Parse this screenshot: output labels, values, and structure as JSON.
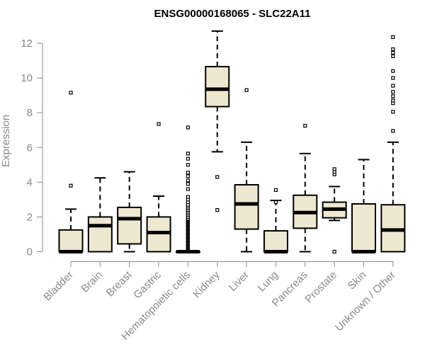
{
  "chart_data": {
    "type": "boxplot",
    "title": "ENSG00000168065 - SLC22A11",
    "xlabel": "",
    "ylabel": "Expression",
    "ylim": [
      0,
      12.5
    ],
    "yticks": [
      0,
      2,
      4,
      6,
      8,
      10,
      12
    ],
    "grid": false,
    "box_fill": "#ede8d0",
    "box_stroke": "#000000",
    "axis_color": "#8a8a8a",
    "categories": [
      "Bladder",
      "Brain",
      "Breast",
      "Gastric",
      "Hematopoietic cells",
      "Kidney",
      "Liver",
      "Lung",
      "Pancreas",
      "Prostate",
      "Skin",
      "Unknown / Other"
    ],
    "boxes": [
      {
        "name": "Bladder",
        "whisker_low": 0,
        "q1": 0,
        "median": 0,
        "q3": 1.25,
        "whisker_high": 2.45,
        "outliers": [
          3.8,
          9.15
        ]
      },
      {
        "name": "Brain",
        "whisker_low": 0,
        "q1": 0,
        "median": 1.5,
        "q3": 2.0,
        "whisker_high": 4.25,
        "outliers": []
      },
      {
        "name": "Breast",
        "whisker_low": 0,
        "q1": 0.45,
        "median": 1.9,
        "q3": 2.55,
        "whisker_high": 4.6,
        "outliers": []
      },
      {
        "name": "Gastric",
        "whisker_low": 0,
        "q1": 0,
        "median": 1.1,
        "q3": 2.0,
        "whisker_high": 3.2,
        "outliers": [
          7.35
        ]
      },
      {
        "name": "Hematopoietic cells",
        "whisker_low": 0,
        "q1": 0,
        "median": 0,
        "q3": 0,
        "whisker_high": 0,
        "outliers": [
          0.05,
          0.1,
          0.15,
          0.2,
          0.25,
          0.3,
          0.35,
          0.4,
          0.45,
          0.5,
          0.55,
          0.6,
          0.65,
          0.7,
          0.75,
          0.8,
          0.85,
          0.9,
          0.95,
          1.0,
          1.05,
          1.1,
          1.15,
          1.2,
          1.25,
          1.3,
          1.35,
          1.4,
          1.45,
          1.5,
          1.55,
          1.6,
          1.65,
          1.7,
          1.75,
          1.8,
          1.85,
          1.9,
          2.0,
          2.1,
          2.2,
          2.3,
          2.4,
          2.5,
          2.6,
          2.7,
          2.85,
          3.0,
          3.15,
          3.6,
          3.9,
          4.1,
          4.35,
          4.55,
          5.0,
          5.35,
          5.65,
          7.15
        ]
      },
      {
        "name": "Kidney",
        "whisker_low": 5.75,
        "q1": 8.35,
        "median": 9.35,
        "q3": 10.65,
        "whisker_high": 12.7,
        "outliers": [
          4.3,
          2.4
        ]
      },
      {
        "name": "Liver",
        "whisker_low": 0,
        "q1": 1.3,
        "median": 2.75,
        "q3": 3.85,
        "whisker_high": 6.3,
        "outliers": [
          9.3
        ]
      },
      {
        "name": "Lung",
        "whisker_low": 0,
        "q1": 0,
        "median": 0,
        "q3": 1.2,
        "whisker_high": 2.95,
        "outliers": [
          2.85,
          3.55
        ]
      },
      {
        "name": "Pancreas",
        "whisker_low": 0,
        "q1": 1.35,
        "median": 2.25,
        "q3": 3.25,
        "whisker_high": 5.65,
        "outliers": [
          7.25
        ]
      },
      {
        "name": "Prostate",
        "whisker_low": 1.8,
        "q1": 1.95,
        "median": 2.45,
        "q3": 2.85,
        "whisker_high": 3.75,
        "outliers": [
          4.45,
          4.6,
          4.75,
          0.0
        ]
      },
      {
        "name": "Skin",
        "whisker_low": 0,
        "q1": 0,
        "median": 0,
        "q3": 2.75,
        "whisker_high": 5.3,
        "outliers": []
      },
      {
        "name": "Unknown / Other",
        "whisker_low": 0,
        "q1": 0,
        "median": 1.25,
        "q3": 2.7,
        "whisker_high": 6.3,
        "outliers": [
          6.95,
          8.05,
          8.55,
          8.7,
          8.95,
          9.2,
          9.55,
          10.0,
          10.4,
          11.25,
          11.45,
          11.65,
          12.35
        ]
      }
    ]
  }
}
